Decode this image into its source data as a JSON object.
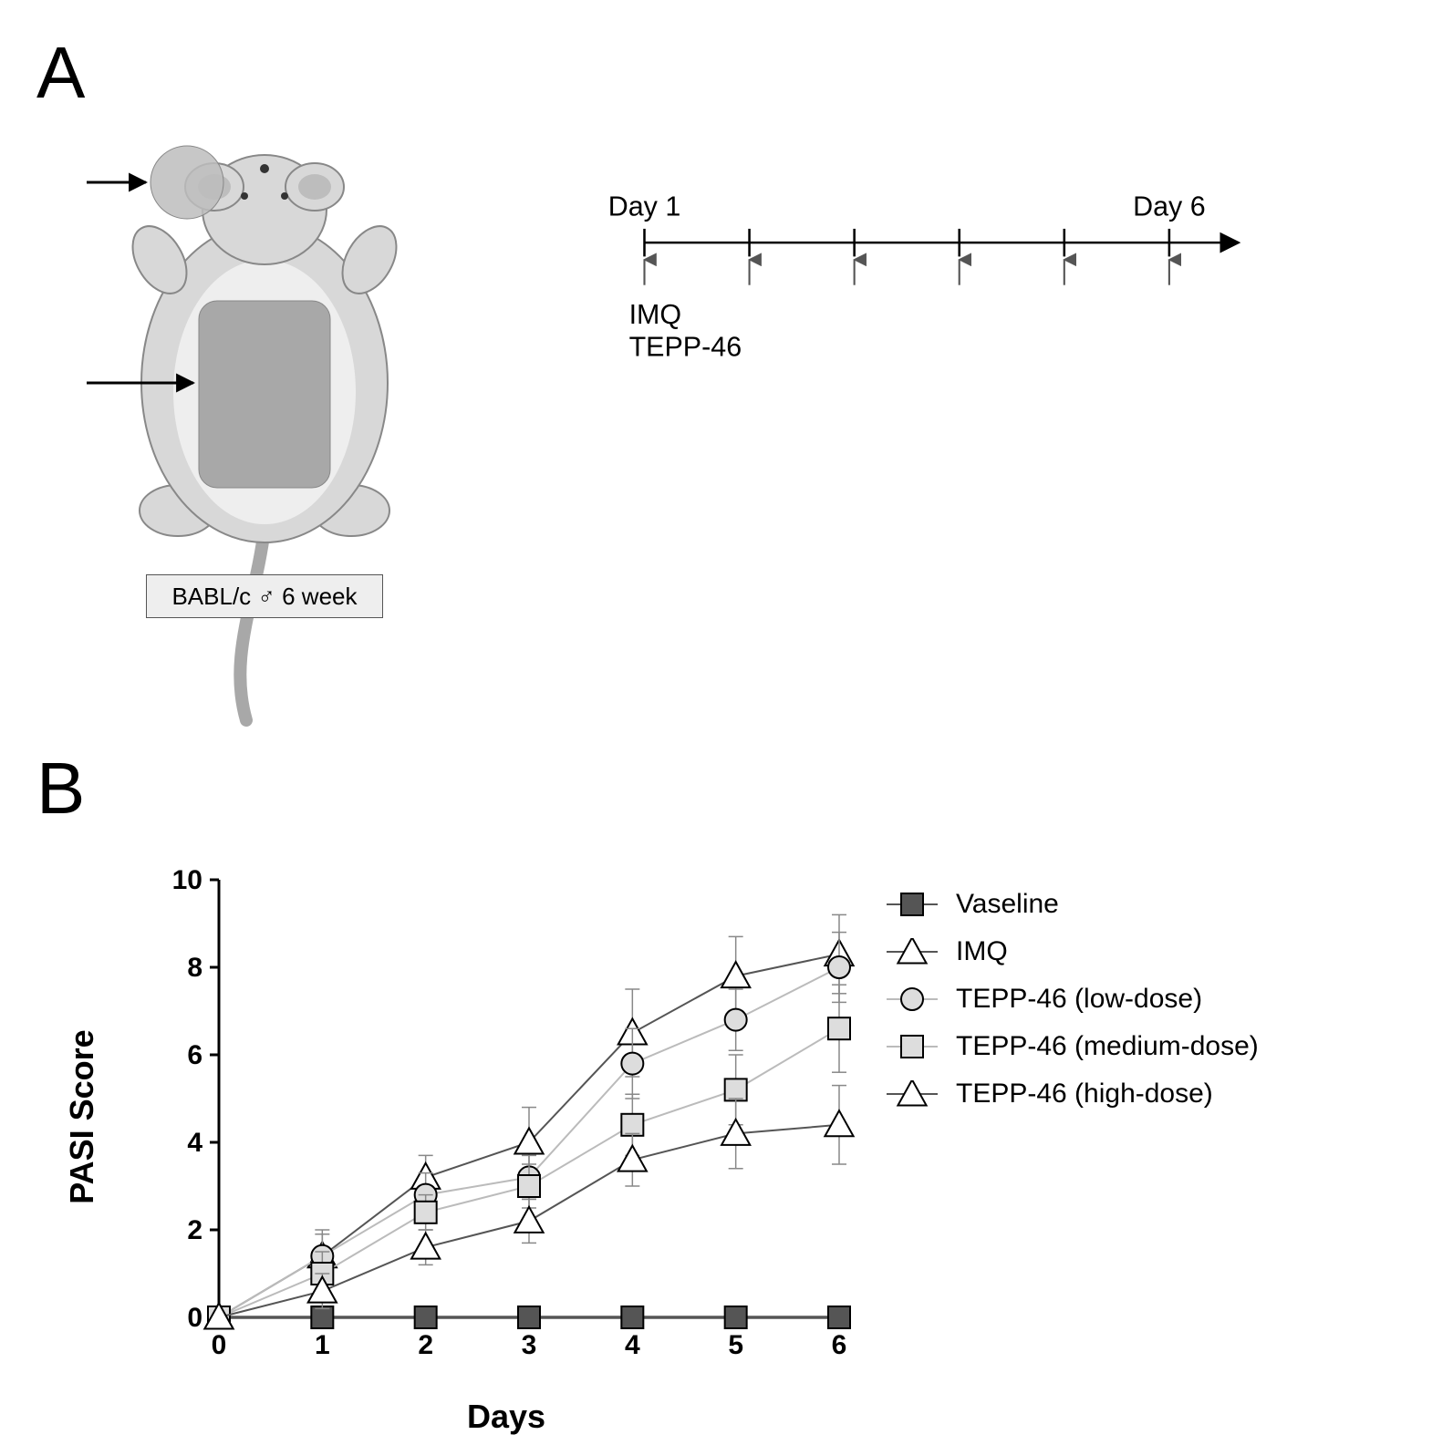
{
  "panelA": {
    "label": "A",
    "mouse_strain_label": "BABL/c ♂ 6 week",
    "arrow_targets": [
      "ear",
      "back"
    ],
    "timeline": {
      "day_start_label": "Day 1",
      "day_end_label": "Day 6",
      "n_ticks": 6,
      "treatments": [
        "IMQ",
        "TEPP-46"
      ],
      "axis_color": "#000000",
      "arrow_color": "#555555"
    },
    "mouse_colors": {
      "body_fill": "#d8d8d8",
      "body_stroke": "#888888",
      "belly_fill": "#eeeeee",
      "ear_patch": "#bdbdbd",
      "back_patch": "#a8a8a8",
      "tail": "#a8a8a8"
    }
  },
  "panelB": {
    "label": "B",
    "chart": {
      "type": "line",
      "xlabel": "Days",
      "ylabel": "PASI Score",
      "xlim": [
        0,
        6
      ],
      "ylim": [
        0,
        10
      ],
      "xtick_step": 1,
      "ytick_step": 2,
      "axis_color": "#000000",
      "tick_fontsize": 30,
      "label_fontsize": 36,
      "background_color": "#ffffff",
      "line_width": 2,
      "errorbar_width": 1.5,
      "errorbar_cap": 8,
      "marker_size": 12,
      "significance": {
        "label": "***",
        "fontsize": 28,
        "between": [
          "IMQ",
          "TEPP-46 (high-dose)"
        ],
        "x": 6
      },
      "series": [
        {
          "name": "Vaseline",
          "marker": "square",
          "line_color": "#555555",
          "marker_fill": "#555555",
          "marker_stroke": "#000000",
          "x": [
            0,
            1,
            2,
            3,
            4,
            5,
            6
          ],
          "y": [
            0,
            0,
            0,
            0,
            0,
            0,
            0
          ],
          "err": [
            0,
            0,
            0,
            0,
            0,
            0,
            0
          ]
        },
        {
          "name": " IMQ",
          "marker": "triangle",
          "line_color": "#555555",
          "marker_fill": "#ffffff",
          "marker_stroke": "#000000",
          "x": [
            0,
            1,
            2,
            3,
            4,
            5,
            6
          ],
          "y": [
            0,
            1.4,
            3.2,
            4.0,
            6.5,
            7.8,
            8.3
          ],
          "err": [
            0,
            0.5,
            0.5,
            0.8,
            1.0,
            0.9,
            0.9
          ]
        },
        {
          "name": "TEPP-46 (low-dose)",
          "marker": "circle",
          "line_color": "#bbbbbb",
          "marker_fill": "#dddddd",
          "marker_stroke": "#000000",
          "x": [
            0,
            1,
            2,
            3,
            4,
            5,
            6
          ],
          "y": [
            0,
            1.4,
            2.8,
            3.2,
            5.8,
            6.8,
            8.0
          ],
          "err": [
            0,
            0.6,
            0.5,
            0.5,
            0.8,
            0.7,
            0.8
          ]
        },
        {
          "name": "TEPP-46 (medium-dose)",
          "marker": "square",
          "line_color": "#bbbbbb",
          "marker_fill": "#dddddd",
          "marker_stroke": "#000000",
          "x": [
            0,
            1,
            2,
            3,
            4,
            5,
            6
          ],
          "y": [
            0,
            1.0,
            2.4,
            3.0,
            4.4,
            5.2,
            6.6
          ],
          "err": [
            0,
            0.5,
            0.4,
            0.5,
            0.7,
            0.8,
            1.0
          ]
        },
        {
          "name": "TEPP-46 (high-dose)",
          "marker": "triangle",
          "line_color": "#555555",
          "marker_fill": "#ffffff",
          "marker_stroke": "#000000",
          "x": [
            0,
            1,
            2,
            3,
            4,
            5,
            6
          ],
          "y": [
            0,
            0.6,
            1.6,
            2.2,
            3.6,
            4.2,
            4.4
          ],
          "err": [
            0,
            0.4,
            0.4,
            0.5,
            0.6,
            0.8,
            0.9
          ]
        }
      ]
    }
  }
}
